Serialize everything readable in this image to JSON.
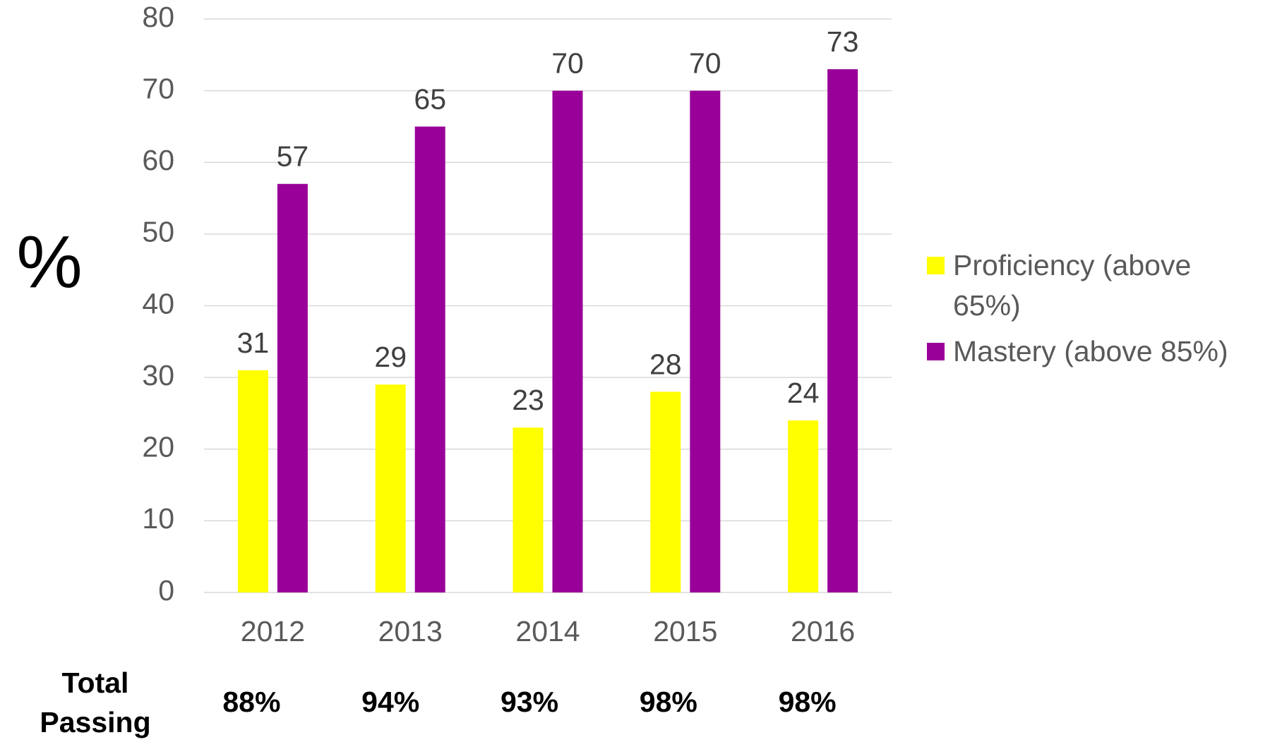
{
  "chart_data": {
    "type": "bar",
    "y_label": "%",
    "categories": [
      "2012",
      "2013",
      "2014",
      "2015",
      "2016"
    ],
    "series": [
      {
        "name": "Proficiency (above 65%)",
        "color": "#ffff00",
        "values": [
          31,
          29,
          23,
          28,
          24
        ]
      },
      {
        "name": "Mastery (above 85%)",
        "color": "#990099",
        "values": [
          57,
          65,
          70,
          70,
          73
        ]
      }
    ],
    "ylim": [
      0,
      80
    ],
    "yticks": [
      0,
      10,
      20,
      30,
      40,
      50,
      60,
      70,
      80
    ],
    "grid": true,
    "legend": "right",
    "total_passing_label": "Total Passing",
    "total_passing": [
      "88%",
      "94%",
      "93%",
      "98%",
      "98%"
    ]
  }
}
